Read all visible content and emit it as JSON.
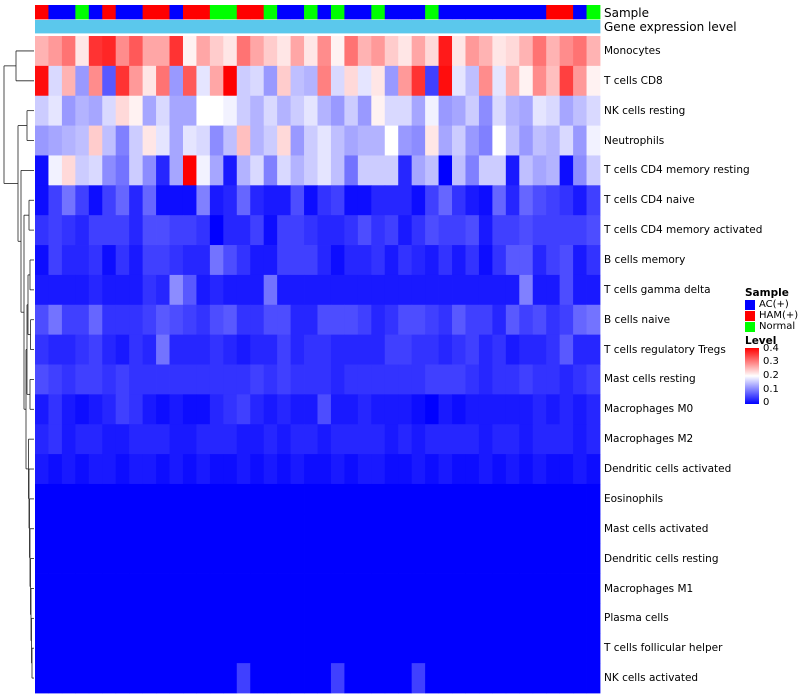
{
  "chart_data": {
    "type": "heatmap",
    "title": "",
    "annotation_labels": [
      "Sample",
      "Gene expression level"
    ],
    "legend": {
      "sample_title": "Sample",
      "sample_items": [
        {
          "label": "AC(+)",
          "color": "#0000ff"
        },
        {
          "label": "HAM(+)",
          "color": "#ff0000"
        },
        {
          "label": "Normal",
          "color": "#00ff00"
        }
      ],
      "level_title": "Level",
      "level_ticks": [
        "0.4",
        "0.3",
        "0.2",
        "0.1",
        "0"
      ],
      "level_range": [
        0,
        0.4
      ]
    },
    "column_groups": [
      "H",
      "A",
      "A",
      "N",
      "A",
      "H",
      "A",
      "A",
      "H",
      "H",
      "A",
      "H",
      "H",
      "N",
      "N",
      "H",
      "H",
      "N",
      "A",
      "A",
      "N",
      "A",
      "N",
      "A",
      "A",
      "N",
      "A",
      "A",
      "A",
      "N",
      "A",
      "A",
      "A",
      "A",
      "A",
      "A",
      "A",
      "A",
      "H",
      "H",
      "A",
      "N"
    ],
    "gene_expression_color": "#5bc8ec",
    "rows": [
      {
        "name": "Monocytes",
        "values": [
          0.26,
          0.28,
          0.31,
          0.22,
          0.36,
          0.37,
          0.29,
          0.33,
          0.27,
          0.27,
          0.36,
          0.21,
          0.27,
          0.24,
          0.22,
          0.31,
          0.27,
          0.24,
          0.22,
          0.27,
          0.22,
          0.29,
          0.21,
          0.31,
          0.26,
          0.28,
          0.24,
          0.22,
          0.27,
          0.23,
          0.38,
          0.22,
          0.28,
          0.26,
          0.22,
          0.23,
          0.26,
          0.31,
          0.26,
          0.29,
          0.31,
          0.26
        ]
      },
      {
        "name": "T cells CD8",
        "values": [
          0.39,
          0.17,
          0.26,
          0.12,
          0.29,
          0.07,
          0.36,
          0.28,
          0.22,
          0.31,
          0.12,
          0.33,
          0.18,
          0.27,
          0.4,
          0.16,
          0.17,
          0.12,
          0.24,
          0.15,
          0.14,
          0.3,
          0.17,
          0.23,
          0.18,
          0.22,
          0.12,
          0.28,
          0.36,
          0.05,
          0.39,
          0.18,
          0.15,
          0.29,
          0.18,
          0.26,
          0.21,
          0.29,
          0.25,
          0.35,
          0.28,
          0.21
        ]
      },
      {
        "name": "NK cells resting",
        "values": [
          0.16,
          0.18,
          0.12,
          0.14,
          0.13,
          0.17,
          0.23,
          0.21,
          0.13,
          0.17,
          0.13,
          0.13,
          0.2,
          0.2,
          0.19,
          0.16,
          0.14,
          0.17,
          0.14,
          0.16,
          0.18,
          0.14,
          0.12,
          0.16,
          0.12,
          0.21,
          0.17,
          0.17,
          0.13,
          0.19,
          0.12,
          0.13,
          0.16,
          0.11,
          0.17,
          0.14,
          0.13,
          0.18,
          0.17,
          0.13,
          0.15,
          0.17
        ]
      },
      {
        "name": "Neutrophils",
        "values": [
          0.12,
          0.13,
          0.14,
          0.15,
          0.24,
          0.15,
          0.1,
          0.16,
          0.22,
          0.18,
          0.13,
          0.18,
          0.17,
          0.11,
          0.15,
          0.25,
          0.14,
          0.16,
          0.23,
          0.12,
          0.16,
          0.18,
          0.15,
          0.13,
          0.14,
          0.14,
          0.2,
          0.12,
          0.11,
          0.22,
          0.13,
          0.16,
          0.12,
          0.1,
          0.2,
          0.15,
          0.12,
          0.15,
          0.14,
          0.17,
          0.12,
          0.19
        ]
      },
      {
        "name": "T cells CD4 memory resting",
        "values": [
          0.01,
          0.19,
          0.23,
          0.16,
          0.17,
          0.11,
          0.09,
          0.16,
          0.11,
          0.03,
          0.13,
          0.4,
          0.19,
          0.13,
          0.02,
          0.14,
          0.17,
          0.1,
          0.17,
          0.14,
          0.16,
          0.18,
          0.15,
          0.09,
          0.16,
          0.16,
          0.16,
          0.03,
          0.13,
          0.15,
          0.0,
          0.15,
          0.1,
          0.16,
          0.16,
          0.02,
          0.15,
          0.13,
          0.14,
          0.01,
          0.11,
          0.16
        ]
      },
      {
        "name": "T cells CD4 naive",
        "values": [
          0.01,
          0.05,
          0.09,
          0.05,
          0.01,
          0.05,
          0.08,
          0.03,
          0.08,
          0.01,
          0.01,
          0.01,
          0.1,
          0.02,
          0.03,
          0.08,
          0.03,
          0.02,
          0.02,
          0.06,
          0.01,
          0.04,
          0.05,
          0.01,
          0.01,
          0.03,
          0.03,
          0.03,
          0.01,
          0.05,
          0.08,
          0.04,
          0.02,
          0.01,
          0.08,
          0.03,
          0.08,
          0.06,
          0.05,
          0.04,
          0.02,
          0.05
        ]
      },
      {
        "name": "T cells CD4 memory activated",
        "values": [
          0.04,
          0.05,
          0.04,
          0.03,
          0.05,
          0.05,
          0.05,
          0.03,
          0.06,
          0.06,
          0.05,
          0.05,
          0.04,
          0.0,
          0.03,
          0.03,
          0.05,
          0.01,
          0.05,
          0.05,
          0.04,
          0.03,
          0.03,
          0.04,
          0.06,
          0.04,
          0.05,
          0.02,
          0.04,
          0.06,
          0.05,
          0.05,
          0.06,
          0.02,
          0.05,
          0.05,
          0.06,
          0.05,
          0.05,
          0.05,
          0.05,
          0.06
        ]
      },
      {
        "name": "B cells memory",
        "values": [
          0.01,
          0.05,
          0.03,
          0.03,
          0.04,
          0.01,
          0.04,
          0.02,
          0.05,
          0.05,
          0.04,
          0.03,
          0.03,
          0.09,
          0.06,
          0.04,
          0.02,
          0.02,
          0.05,
          0.05,
          0.05,
          0.03,
          0.01,
          0.03,
          0.03,
          0.04,
          0.02,
          0.04,
          0.03,
          0.02,
          0.04,
          0.02,
          0.04,
          0.01,
          0.04,
          0.07,
          0.07,
          0.03,
          0.05,
          0.06,
          0.02,
          0.04
        ]
      },
      {
        "name": "T cells gamma delta",
        "values": [
          0.02,
          0.02,
          0.02,
          0.02,
          0.03,
          0.02,
          0.02,
          0.02,
          0.04,
          0.03,
          0.11,
          0.07,
          0.02,
          0.03,
          0.02,
          0.02,
          0.02,
          0.09,
          0.02,
          0.02,
          0.02,
          0.02,
          0.02,
          0.02,
          0.02,
          0.02,
          0.02,
          0.02,
          0.02,
          0.02,
          0.02,
          0.02,
          0.02,
          0.02,
          0.02,
          0.02,
          0.1,
          0.02,
          0.02,
          0.06,
          0.02,
          0.02
        ]
      },
      {
        "name": "B cells naive",
        "values": [
          0.06,
          0.09,
          0.05,
          0.05,
          0.08,
          0.04,
          0.04,
          0.04,
          0.05,
          0.07,
          0.06,
          0.05,
          0.04,
          0.06,
          0.07,
          0.04,
          0.04,
          0.06,
          0.06,
          0.03,
          0.03,
          0.06,
          0.06,
          0.06,
          0.05,
          0.03,
          0.04,
          0.06,
          0.06,
          0.05,
          0.04,
          0.07,
          0.05,
          0.05,
          0.03,
          0.07,
          0.05,
          0.06,
          0.04,
          0.05,
          0.08,
          0.09
        ]
      },
      {
        "name": "T cells regulatory  Tregs",
        "values": [
          0.04,
          0.03,
          0.03,
          0.04,
          0.05,
          0.03,
          0.02,
          0.04,
          0.03,
          0.09,
          0.03,
          0.03,
          0.03,
          0.04,
          0.03,
          0.02,
          0.03,
          0.03,
          0.05,
          0.03,
          0.04,
          0.04,
          0.03,
          0.03,
          0.03,
          0.03,
          0.05,
          0.05,
          0.04,
          0.04,
          0.03,
          0.04,
          0.05,
          0.03,
          0.04,
          0.02,
          0.03,
          0.03,
          0.04,
          0.07,
          0.03,
          0.03
        ]
      },
      {
        "name": "Mast cells resting",
        "values": [
          0.06,
          0.05,
          0.04,
          0.05,
          0.05,
          0.04,
          0.05,
          0.04,
          0.04,
          0.04,
          0.04,
          0.04,
          0.04,
          0.04,
          0.04,
          0.04,
          0.05,
          0.04,
          0.05,
          0.04,
          0.04,
          0.04,
          0.03,
          0.04,
          0.04,
          0.04,
          0.04,
          0.04,
          0.04,
          0.05,
          0.05,
          0.05,
          0.04,
          0.03,
          0.04,
          0.04,
          0.05,
          0.04,
          0.04,
          0.03,
          0.04,
          0.05
        ]
      },
      {
        "name": "Macrophages M0",
        "values": [
          0.02,
          0.04,
          0.02,
          0.01,
          0.02,
          0.03,
          0.05,
          0.04,
          0.02,
          0.01,
          0.02,
          0.01,
          0.01,
          0.03,
          0.04,
          0.05,
          0.03,
          0.02,
          0.03,
          0.02,
          0.02,
          0.06,
          0.02,
          0.02,
          0.03,
          0.02,
          0.02,
          0.02,
          0.01,
          0.0,
          0.02,
          0.01,
          0.02,
          0.02,
          0.02,
          0.02,
          0.02,
          0.03,
          0.02,
          0.03,
          0.02,
          0.03
        ]
      },
      {
        "name": "Macrophages M2",
        "values": [
          0.03,
          0.04,
          0.02,
          0.03,
          0.03,
          0.02,
          0.02,
          0.03,
          0.03,
          0.03,
          0.02,
          0.02,
          0.03,
          0.03,
          0.03,
          0.02,
          0.02,
          0.03,
          0.02,
          0.03,
          0.03,
          0.02,
          0.03,
          0.03,
          0.03,
          0.03,
          0.02,
          0.03,
          0.02,
          0.03,
          0.03,
          0.03,
          0.03,
          0.02,
          0.03,
          0.03,
          0.02,
          0.03,
          0.03,
          0.03,
          0.02,
          0.03
        ]
      },
      {
        "name": "Dendritic cells activated",
        "values": [
          0.02,
          0.01,
          0.02,
          0.01,
          0.02,
          0.02,
          0.01,
          0.02,
          0.02,
          0.01,
          0.02,
          0.01,
          0.02,
          0.01,
          0.01,
          0.02,
          0.01,
          0.02,
          0.01,
          0.02,
          0.01,
          0.01,
          0.02,
          0.01,
          0.02,
          0.02,
          0.01,
          0.01,
          0.02,
          0.01,
          0.02,
          0.01,
          0.01,
          0.02,
          0.01,
          0.02,
          0.01,
          0.02,
          0.01,
          0.01,
          0.02,
          0.01
        ]
      },
      {
        "name": "Eosinophils",
        "values": [
          0,
          0,
          0,
          0,
          0,
          0,
          0,
          0,
          0,
          0,
          0,
          0,
          0,
          0,
          0,
          0,
          0,
          0,
          0,
          0,
          0,
          0,
          0,
          0,
          0,
          0,
          0,
          0,
          0,
          0,
          0,
          0,
          0,
          0,
          0,
          0,
          0,
          0,
          0,
          0,
          0,
          0
        ]
      },
      {
        "name": "Mast cells activated",
        "values": [
          0,
          0,
          0,
          0,
          0,
          0,
          0,
          0,
          0,
          0,
          0,
          0,
          0,
          0,
          0,
          0,
          0,
          0,
          0,
          0,
          0,
          0,
          0,
          0,
          0,
          0,
          0,
          0,
          0,
          0,
          0,
          0,
          0,
          0,
          0,
          0,
          0,
          0,
          0,
          0,
          0,
          0
        ]
      },
      {
        "name": "Dendritic cells resting",
        "values": [
          0,
          0,
          0,
          0,
          0,
          0,
          0,
          0,
          0,
          0,
          0,
          0,
          0,
          0,
          0,
          0,
          0,
          0,
          0,
          0,
          0,
          0,
          0,
          0,
          0,
          0,
          0,
          0,
          0,
          0,
          0,
          0,
          0,
          0,
          0,
          0,
          0,
          0,
          0,
          0,
          0,
          0
        ]
      },
      {
        "name": "Macrophages M1",
        "values": [
          0,
          0,
          0,
          0,
          0,
          0,
          0,
          0,
          0,
          0,
          0,
          0,
          0,
          0,
          0,
          0,
          0,
          0,
          0,
          0,
          0,
          0,
          0,
          0,
          0,
          0,
          0,
          0,
          0,
          0,
          0,
          0,
          0,
          0,
          0,
          0,
          0,
          0,
          0,
          0,
          0,
          0
        ]
      },
      {
        "name": "Plasma cells",
        "values": [
          0,
          0,
          0,
          0,
          0,
          0,
          0,
          0,
          0,
          0,
          0,
          0,
          0,
          0,
          0,
          0,
          0,
          0,
          0,
          0,
          0,
          0,
          0,
          0,
          0,
          0,
          0,
          0,
          0,
          0,
          0,
          0,
          0,
          0,
          0,
          0,
          0,
          0,
          0,
          0,
          0,
          0
        ]
      },
      {
        "name": "T cells follicular helper",
        "values": [
          0,
          0,
          0,
          0,
          0,
          0,
          0,
          0,
          0,
          0,
          0,
          0,
          0,
          0,
          0,
          0,
          0,
          0,
          0,
          0,
          0,
          0,
          0,
          0,
          0,
          0,
          0,
          0,
          0,
          0,
          0,
          0,
          0,
          0,
          0,
          0,
          0,
          0,
          0,
          0,
          0,
          0
        ]
      },
      {
        "name": "NK cells activated",
        "values": [
          0,
          0,
          0,
          0,
          0,
          0,
          0,
          0,
          0,
          0,
          0,
          0,
          0,
          0,
          0,
          0.05,
          0,
          0,
          0,
          0,
          0,
          0,
          0.05,
          0,
          0,
          0,
          0,
          0,
          0.05,
          0,
          0,
          0,
          0,
          0,
          0,
          0,
          0,
          0,
          0,
          0,
          0,
          0
        ]
      }
    ]
  }
}
